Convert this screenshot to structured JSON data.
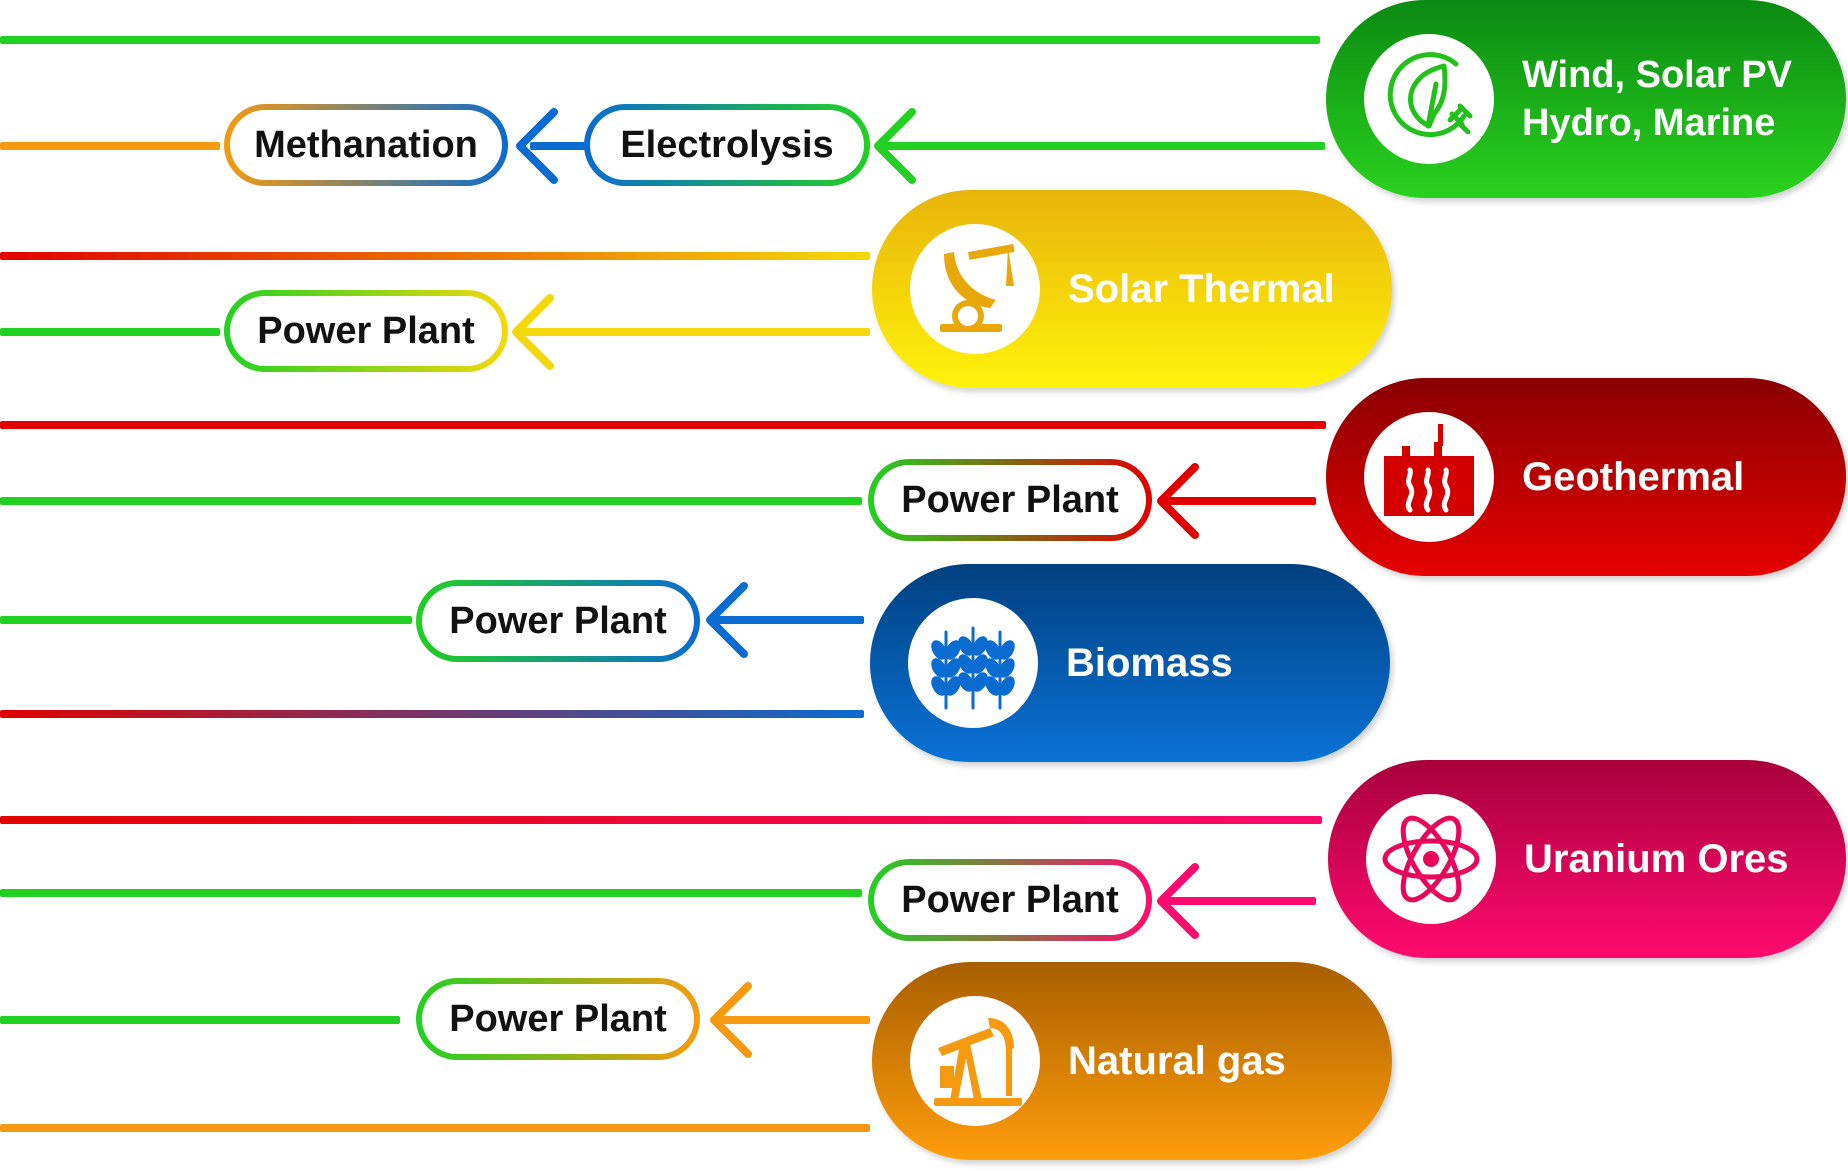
{
  "sources": {
    "wind": {
      "label_line1": "Wind, Solar PV",
      "label_line2": "Hydro, Marine",
      "icon": "leaf-plug-icon",
      "color_top": "#0a8a12",
      "color_bottom": "#2ad11e"
    },
    "solar_thermal": {
      "label": "Solar Thermal",
      "icon": "solar-dish-icon",
      "color_top": "#e8b40a",
      "color_bottom": "#fff30a"
    },
    "geothermal": {
      "label": "Geothermal",
      "icon": "factory-heat-icon",
      "color_top": "#8a0000",
      "color_bottom": "#e60000"
    },
    "biomass": {
      "label": "Biomass",
      "icon": "wheat-icon",
      "color_top": "#004080",
      "color_bottom": "#0a72d6"
    },
    "uranium": {
      "label": "Uranium Ores",
      "icon": "atom-icon",
      "color_top": "#a8003c",
      "color_bottom": "#ff0a6e"
    },
    "natural_gas": {
      "label": "Natural gas",
      "icon": "oil-pump-icon",
      "color_top": "#a85e00",
      "color_bottom": "#ff9d0a"
    }
  },
  "processes": {
    "methanation": "Methanation",
    "electrolysis": "Electrolysis",
    "power_plant_solar": "Power Plant",
    "power_plant_geo": "Power Plant",
    "power_plant_biomass": "Power Plant",
    "power_plant_uranium": "Power Plant",
    "power_plant_gas": "Power Plant"
  },
  "colors": {
    "electricity": "#22d022",
    "heat": "#e00000",
    "gas": "#f59a10",
    "hydrogen": "#0a6bd0",
    "solar": "#f5d80a",
    "nuclear": "#ff0a6e"
  }
}
